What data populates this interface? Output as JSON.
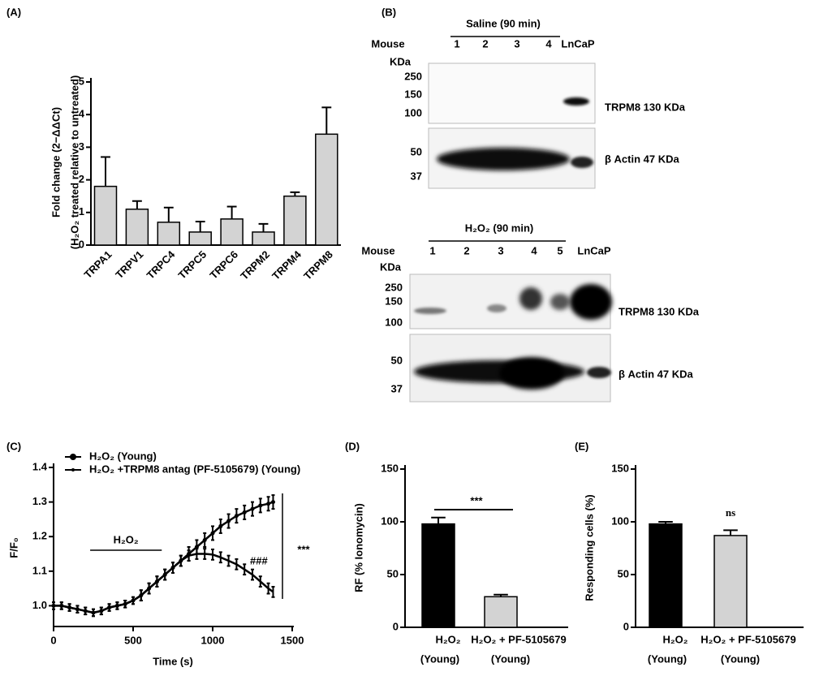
{
  "chart_data": [
    {
      "type": "bar",
      "panel": "(A)",
      "ylabel": [
        "Fold change (2−ΔΔCt)",
        "(H₂O₂ treated relative to untreated)"
      ],
      "categories": [
        "TRPA1",
        "TRPV1",
        "TRPC4",
        "TRPC5",
        "TRPC6",
        "TRPM2",
        "TRPM4",
        "TRPM8"
      ],
      "values": [
        1.8,
        1.1,
        0.7,
        0.4,
        0.8,
        0.4,
        1.5,
        3.4
      ],
      "errors": [
        0.9,
        0.25,
        0.45,
        0.32,
        0.38,
        0.25,
        0.12,
        0.82
      ],
      "color": "#d3d3d3",
      "ylim": [
        0,
        5
      ],
      "yticks": [
        0,
        1,
        2,
        3,
        4,
        5
      ]
    },
    {
      "type": "line",
      "panel": "(C)",
      "xlabel": "Time (s)",
      "ylabel": "F/F₀",
      "x": [
        0,
        50,
        100,
        150,
        200,
        250,
        300,
        350,
        400,
        450,
        500,
        550,
        600,
        650,
        700,
        750,
        800,
        850,
        900,
        950,
        1000,
        1050,
        1100,
        1150,
        1200,
        1250,
        1300,
        1350,
        1380
      ],
      "series": [
        {
          "name": "H₂O₂  (Young)",
          "color": "#000000",
          "values": [
            1.0,
            1.0,
            0.995,
            0.99,
            0.985,
            0.98,
            0.985,
            0.995,
            1.0,
            1.005,
            1.015,
            1.03,
            1.05,
            1.07,
            1.09,
            1.11,
            1.13,
            1.15,
            1.17,
            1.19,
            1.21,
            1.23,
            1.245,
            1.26,
            1.27,
            1.28,
            1.29,
            1.295,
            1.3
          ],
          "errors": [
            0.01,
            0.01,
            0.01,
            0.01,
            0.01,
            0.01,
            0.01,
            0.01,
            0.01,
            0.01,
            0.01,
            0.015,
            0.015,
            0.015,
            0.015,
            0.015,
            0.015,
            0.02,
            0.02,
            0.02,
            0.02,
            0.02,
            0.02,
            0.02,
            0.02,
            0.02,
            0.02,
            0.02,
            0.02
          ]
        },
        {
          "name": "H₂O₂ +TRPM8 antag (PF-5105679) (Young)",
          "color": "#000000",
          "values": [
            1.0,
            1.0,
            0.995,
            0.99,
            0.985,
            0.98,
            0.985,
            0.995,
            1.0,
            1.005,
            1.015,
            1.03,
            1.05,
            1.07,
            1.09,
            1.11,
            1.13,
            1.145,
            1.15,
            1.15,
            1.148,
            1.14,
            1.13,
            1.12,
            1.105,
            1.09,
            1.07,
            1.05,
            1.04
          ],
          "errors": [
            0.01,
            0.01,
            0.01,
            0.01,
            0.01,
            0.01,
            0.01,
            0.01,
            0.01,
            0.01,
            0.01,
            0.015,
            0.015,
            0.015,
            0.015,
            0.015,
            0.015,
            0.015,
            0.015,
            0.015,
            0.015,
            0.015,
            0.015,
            0.015,
            0.015,
            0.015,
            0.015,
            0.015,
            0.015
          ]
        }
      ],
      "annotations": [
        "H₂O₂",
        "###",
        "***"
      ],
      "xlim": [
        0,
        1500
      ],
      "xticks": [
        0,
        500,
        1000,
        1500
      ],
      "ylim": [
        0.94,
        1.4
      ],
      "yticks": [
        {
          "value": 1,
          "label": "1.0"
        },
        1.1,
        1.2,
        1.3,
        1.4
      ]
    },
    {
      "type": "bar",
      "panel": "(D)",
      "ylabel": "RF (% Ionomycin)",
      "categories": [
        "H₂O₂",
        "H₂O₂ + PF-5105679"
      ],
      "category_sublabels": [
        "(Young)",
        "(Young)"
      ],
      "values": [
        98,
        29
      ],
      "errors": [
        6,
        2
      ],
      "colors": [
        "#000000",
        "#d3d3d3"
      ],
      "annotations": [
        "***"
      ],
      "ylim": [
        0,
        150
      ],
      "yticks": [
        0,
        50,
        100,
        150
      ]
    },
    {
      "type": "bar",
      "panel": "(E)",
      "ylabel": "Responding cells (%)",
      "categories": [
        "H₂O₂",
        "H₂O₂ + PF-5105679"
      ],
      "category_sublabels": [
        "(Young)",
        "(Young)"
      ],
      "values": [
        98,
        87
      ],
      "errors": [
        2,
        5
      ],
      "colors": [
        "#000000",
        "#d3d3d3"
      ],
      "annotations": [
        "ns"
      ],
      "ylim": [
        0,
        150
      ],
      "yticks": [
        0,
        50,
        100,
        150
      ]
    }
  ],
  "blot_panel": {
    "label": "(B)",
    "top": {
      "title": "Saline (90 min)",
      "mouse": "Mouse",
      "lanes": [
        "1",
        "2",
        "3",
        "4"
      ],
      "control": "LnCaP",
      "kda": "KDa",
      "markers": [
        "250",
        "150",
        "100"
      ],
      "band": "TRPM8 130 KDa",
      "actin_markers": [
        "50",
        "37"
      ],
      "actin": "β Actin 47 KDa"
    },
    "bottom": {
      "title": "H₂O₂ (90 min)",
      "mouse": "Mouse",
      "lanes": [
        "1",
        "2",
        "3",
        "4",
        "5"
      ],
      "control": "LnCaP",
      "kda": "KDa",
      "markers": [
        "250",
        "150",
        "100"
      ],
      "band": "TRPM8 130 KDa",
      "actin_markers": [
        "50",
        "37"
      ],
      "actin": "β Actin 47 KDa"
    }
  }
}
